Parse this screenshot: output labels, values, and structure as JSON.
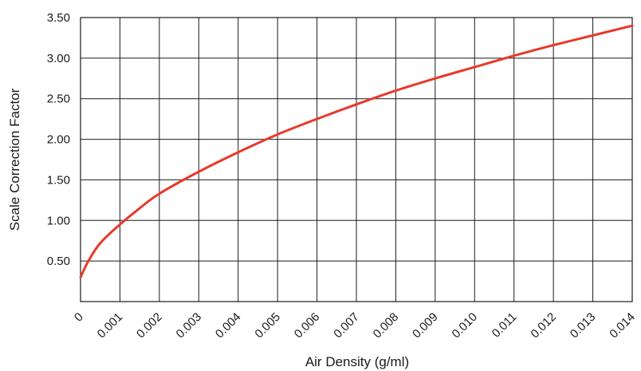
{
  "chart_data": {
    "type": "line",
    "xlabel": "Air Density (g/ml)",
    "ylabel": "Scale Correction Factor",
    "x_ticks": [
      "0",
      "0.001",
      "0.002",
      "0.003",
      "0.004",
      "0.005",
      "0.006",
      "0.007",
      "0.008",
      "0.009",
      "0.010",
      "0.011",
      "0.012",
      "0.013",
      "0.014"
    ],
    "y_ticks": [
      "",
      "0.50",
      "1.00",
      "1.50",
      "2.00",
      "2.50",
      "3.00",
      "3.50"
    ],
    "xlim": [
      0,
      0.014
    ],
    "ylim": [
      0,
      3.5
    ],
    "grid": true,
    "series": [
      {
        "color": "#e8392a",
        "x": [
          0.0,
          0.0002,
          0.0005,
          0.001,
          0.0015,
          0.002,
          0.003,
          0.004,
          0.005,
          0.006,
          0.007,
          0.008,
          0.009,
          0.01,
          0.011,
          0.012,
          0.013,
          0.014
        ],
        "y": [
          0.3,
          0.5,
          0.72,
          0.95,
          1.15,
          1.33,
          1.6,
          1.84,
          2.06,
          2.25,
          2.43,
          2.6,
          2.75,
          2.89,
          3.03,
          3.16,
          3.28,
          3.4
        ]
      }
    ]
  }
}
